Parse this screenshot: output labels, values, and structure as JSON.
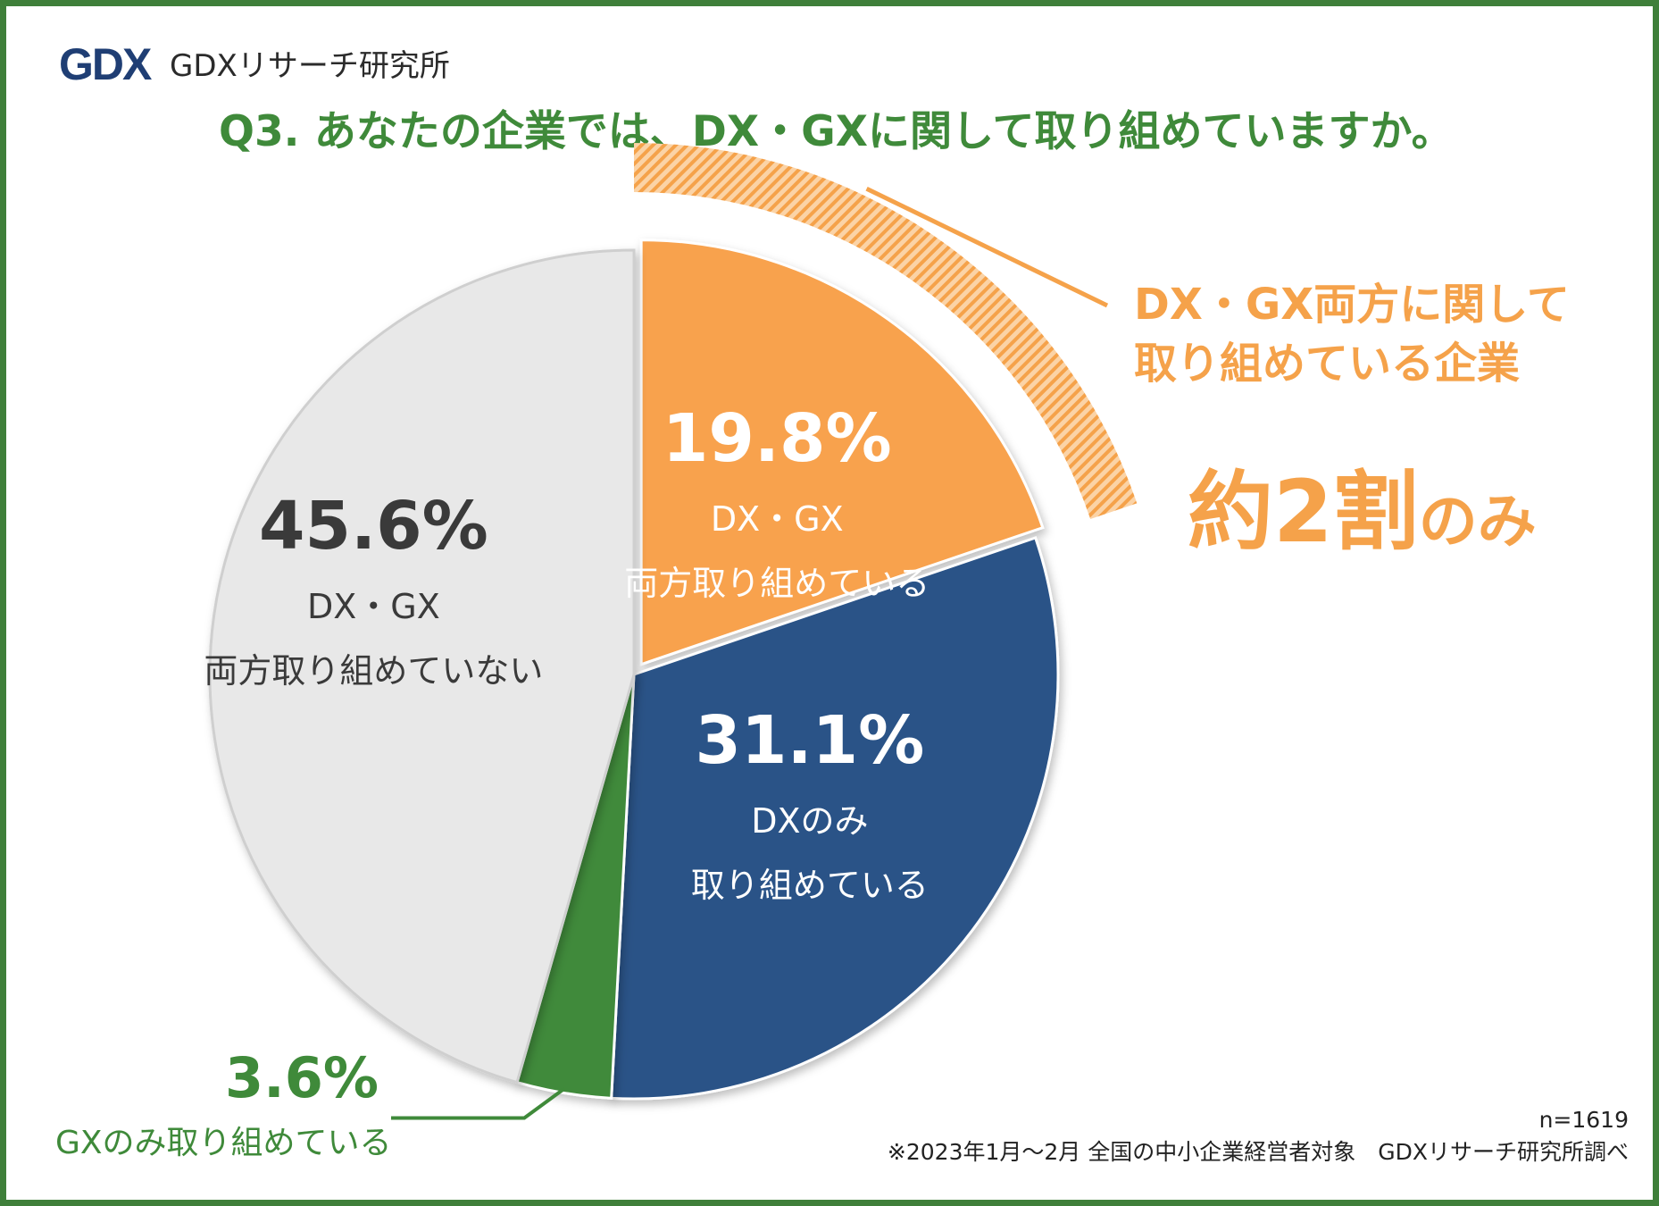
{
  "logo": {
    "mark_text": "GDX",
    "name": "GDXリサーチ研究所"
  },
  "question": "Q3. あなたの企業では、DX・GXに関して取り組めていますか。",
  "callout": {
    "line1": "DX・GX両方に関して",
    "line2": "取り組めている企業",
    "highlight_big": "約2割",
    "highlight_small": "のみ"
  },
  "footer": {
    "n": "n=1619",
    "note": "※2023年1月～2月 全国の中小企業経営者対象　GDXリサーチ研究所調べ"
  },
  "colors": {
    "accent_green": "#3f8a3a",
    "accent_orange": "#f5a24a",
    "navy": "#2b5387",
    "light_gray": "#e8e8e8"
  },
  "chart_data": {
    "type": "pie",
    "title": "Q3. あなたの企業では、DX・GXに関して取り組めていますか。",
    "n": 1619,
    "slices": [
      {
        "pct_label": "19.8%",
        "value": 19.8,
        "line1": "DX・GX",
        "line2": "両方取り組めている",
        "color": "#f8a24e"
      },
      {
        "pct_label": "31.1%",
        "value": 31.1,
        "line1": "DXのみ",
        "line2": "取り組めている",
        "color": "#2b5387"
      },
      {
        "pct_label": "3.6%",
        "value": 3.6,
        "line1": "GXのみ取り組めている",
        "line2": "",
        "color": "#3f8a3a"
      },
      {
        "pct_label": "45.6%",
        "value": 45.6,
        "line1": "DX・GX",
        "line2": "両方取り組めていない",
        "color": "#e8e8e8"
      }
    ]
  }
}
